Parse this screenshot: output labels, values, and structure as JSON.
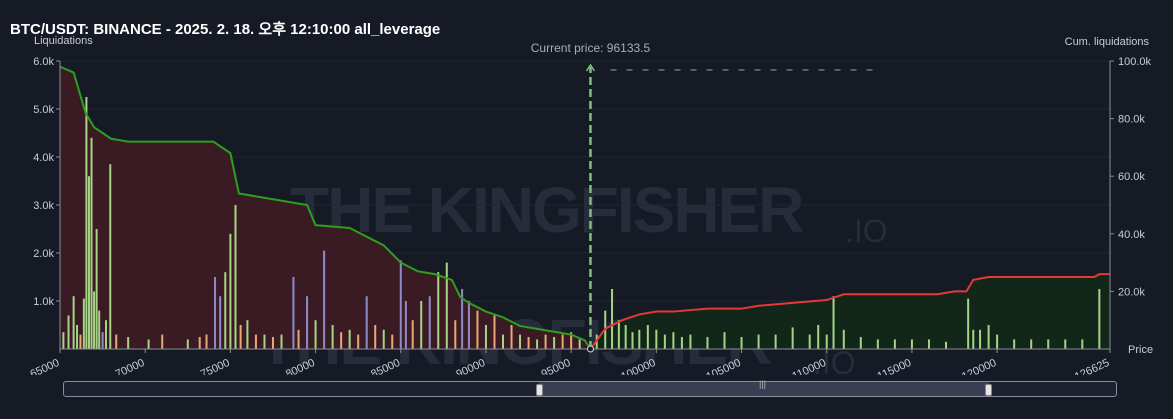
{
  "header": {
    "title": "BTC/USDT: BINANCE - 2025. 2. 18. 오후 12:10:00 all_leverage"
  },
  "axes": {
    "left_label": "Liquidations",
    "right_label": "Cum. liquidations",
    "x_label": "Price"
  },
  "watermark": {
    "text": "THE KINGFISHER",
    "suffix": ".IO"
  },
  "colors": {
    "background": "#161a25",
    "short_cum": "#2e9e1e",
    "long_cum": "#e53935",
    "short_fill": "#3a1b24",
    "long_fill": "#13261a",
    "current_line": "#7fc07a"
  },
  "chart_data": {
    "type": "bar",
    "current_price": 96133.5,
    "current_price_label": "Current price: 96133.5",
    "x_range": [
      65000,
      126625
    ],
    "x_ticks": [
      "65000",
      "70000",
      "75000",
      "80000",
      "85000",
      "90000",
      "95000",
      "100000",
      "105000",
      "110000",
      "115000",
      "120000",
      "126625"
    ],
    "x_tick_values": [
      65000,
      70000,
      75000,
      80000,
      85000,
      90000,
      95000,
      100000,
      105000,
      110000,
      115000,
      120000,
      126625
    ],
    "y_left_range": [
      0,
      6000
    ],
    "y_left_ticks": [
      "6.0k",
      "5.0k",
      "4.0k",
      "3.0k",
      "2.0k",
      "1.0k"
    ],
    "y_left_tick_values": [
      6000,
      5000,
      4000,
      3000,
      2000,
      1000
    ],
    "y_right_range": [
      0,
      100000
    ],
    "y_right_ticks": [
      "100.0k",
      "80.0k",
      "60.0k",
      "40.0k",
      "20.0k"
    ],
    "y_right_tick_values": [
      100000,
      80000,
      60000,
      40000,
      20000
    ],
    "bars": [
      {
        "x": 65200,
        "y": 350,
        "c": "g"
      },
      {
        "x": 65500,
        "y": 700,
        "c": "g"
      },
      {
        "x": 65800,
        "y": 1100,
        "c": "g"
      },
      {
        "x": 66000,
        "y": 500,
        "c": "g"
      },
      {
        "x": 66200,
        "y": 300,
        "c": "o"
      },
      {
        "x": 66400,
        "y": 1050,
        "c": "g"
      },
      {
        "x": 66550,
        "y": 5250,
        "c": "g"
      },
      {
        "x": 66700,
        "y": 3600,
        "c": "g"
      },
      {
        "x": 66850,
        "y": 4400,
        "c": "g"
      },
      {
        "x": 67000,
        "y": 1200,
        "c": "g"
      },
      {
        "x": 67150,
        "y": 2500,
        "c": "g"
      },
      {
        "x": 67300,
        "y": 800,
        "c": "g"
      },
      {
        "x": 67500,
        "y": 350,
        "c": "p"
      },
      {
        "x": 67700,
        "y": 600,
        "c": "g"
      },
      {
        "x": 67950,
        "y": 3850,
        "c": "g"
      },
      {
        "x": 68300,
        "y": 300,
        "c": "o"
      },
      {
        "x": 69000,
        "y": 250,
        "c": "g"
      },
      {
        "x": 70200,
        "y": 200,
        "c": "g"
      },
      {
        "x": 71000,
        "y": 300,
        "c": "o"
      },
      {
        "x": 72500,
        "y": 200,
        "c": "g"
      },
      {
        "x": 73200,
        "y": 250,
        "c": "o"
      },
      {
        "x": 73600,
        "y": 300,
        "c": "o"
      },
      {
        "x": 74100,
        "y": 1500,
        "c": "p"
      },
      {
        "x": 74400,
        "y": 1100,
        "c": "p"
      },
      {
        "x": 74700,
        "y": 1600,
        "c": "g"
      },
      {
        "x": 75000,
        "y": 2400,
        "c": "g"
      },
      {
        "x": 75300,
        "y": 3000,
        "c": "g"
      },
      {
        "x": 75600,
        "y": 500,
        "c": "o"
      },
      {
        "x": 76000,
        "y": 600,
        "c": "g"
      },
      {
        "x": 76500,
        "y": 300,
        "c": "o"
      },
      {
        "x": 77000,
        "y": 300,
        "c": "g"
      },
      {
        "x": 77500,
        "y": 250,
        "c": "o"
      },
      {
        "x": 78000,
        "y": 300,
        "c": "g"
      },
      {
        "x": 78700,
        "y": 1500,
        "c": "p"
      },
      {
        "x": 79000,
        "y": 400,
        "c": "o"
      },
      {
        "x": 79500,
        "y": 1100,
        "c": "p"
      },
      {
        "x": 80000,
        "y": 600,
        "c": "g"
      },
      {
        "x": 80500,
        "y": 2050,
        "c": "p"
      },
      {
        "x": 81000,
        "y": 500,
        "c": "g"
      },
      {
        "x": 81500,
        "y": 350,
        "c": "o"
      },
      {
        "x": 82000,
        "y": 400,
        "c": "g"
      },
      {
        "x": 82500,
        "y": 300,
        "c": "o"
      },
      {
        "x": 83000,
        "y": 1100,
        "c": "p"
      },
      {
        "x": 83500,
        "y": 500,
        "c": "o"
      },
      {
        "x": 84000,
        "y": 400,
        "c": "g"
      },
      {
        "x": 84500,
        "y": 300,
        "c": "o"
      },
      {
        "x": 85000,
        "y": 1850,
        "c": "p"
      },
      {
        "x": 85300,
        "y": 1000,
        "c": "p"
      },
      {
        "x": 85700,
        "y": 600,
        "c": "o"
      },
      {
        "x": 86200,
        "y": 1000,
        "c": "g"
      },
      {
        "x": 86700,
        "y": 1100,
        "c": "p"
      },
      {
        "x": 87200,
        "y": 1600,
        "c": "g"
      },
      {
        "x": 87700,
        "y": 1800,
        "c": "g"
      },
      {
        "x": 88200,
        "y": 600,
        "c": "o"
      },
      {
        "x": 88600,
        "y": 1250,
        "c": "p"
      },
      {
        "x": 89000,
        "y": 1000,
        "c": "p"
      },
      {
        "x": 89500,
        "y": 800,
        "c": "o"
      },
      {
        "x": 90000,
        "y": 500,
        "c": "g"
      },
      {
        "x": 90500,
        "y": 700,
        "c": "o"
      },
      {
        "x": 91000,
        "y": 300,
        "c": "g"
      },
      {
        "x": 91500,
        "y": 500,
        "c": "o"
      },
      {
        "x": 92000,
        "y": 300,
        "c": "g"
      },
      {
        "x": 92500,
        "y": 250,
        "c": "o"
      },
      {
        "x": 93000,
        "y": 200,
        "c": "g"
      },
      {
        "x": 93500,
        "y": 300,
        "c": "o"
      },
      {
        "x": 94000,
        "y": 250,
        "c": "g"
      },
      {
        "x": 94500,
        "y": 300,
        "c": "o"
      },
      {
        "x": 95000,
        "y": 350,
        "c": "o"
      },
      {
        "x": 95500,
        "y": 200,
        "c": "g"
      },
      {
        "x": 96500,
        "y": 300,
        "c": "g"
      },
      {
        "x": 97000,
        "y": 800,
        "c": "g"
      },
      {
        "x": 97400,
        "y": 1250,
        "c": "g"
      },
      {
        "x": 97800,
        "y": 600,
        "c": "g"
      },
      {
        "x": 98200,
        "y": 500,
        "c": "g"
      },
      {
        "x": 98600,
        "y": 350,
        "c": "g"
      },
      {
        "x": 99000,
        "y": 400,
        "c": "g"
      },
      {
        "x": 99500,
        "y": 500,
        "c": "g"
      },
      {
        "x": 100000,
        "y": 400,
        "c": "g"
      },
      {
        "x": 100500,
        "y": 300,
        "c": "g"
      },
      {
        "x": 101000,
        "y": 350,
        "c": "g"
      },
      {
        "x": 101500,
        "y": 250,
        "c": "g"
      },
      {
        "x": 102000,
        "y": 300,
        "c": "g"
      },
      {
        "x": 103000,
        "y": 250,
        "c": "g"
      },
      {
        "x": 104000,
        "y": 350,
        "c": "g"
      },
      {
        "x": 105000,
        "y": 250,
        "c": "g"
      },
      {
        "x": 106000,
        "y": 300,
        "c": "g"
      },
      {
        "x": 107000,
        "y": 300,
        "c": "g"
      },
      {
        "x": 108000,
        "y": 450,
        "c": "g"
      },
      {
        "x": 109000,
        "y": 300,
        "c": "g"
      },
      {
        "x": 109500,
        "y": 500,
        "c": "g"
      },
      {
        "x": 110000,
        "y": 300,
        "c": "g"
      },
      {
        "x": 110400,
        "y": 1100,
        "c": "g"
      },
      {
        "x": 111000,
        "y": 400,
        "c": "g"
      },
      {
        "x": 112000,
        "y": 250,
        "c": "g"
      },
      {
        "x": 113000,
        "y": 200,
        "c": "g"
      },
      {
        "x": 114000,
        "y": 200,
        "c": "g"
      },
      {
        "x": 115000,
        "y": 200,
        "c": "g"
      },
      {
        "x": 116000,
        "y": 200,
        "c": "g"
      },
      {
        "x": 117000,
        "y": 150,
        "c": "g"
      },
      {
        "x": 118300,
        "y": 1050,
        "c": "g"
      },
      {
        "x": 118600,
        "y": 400,
        "c": "g"
      },
      {
        "x": 119000,
        "y": 400,
        "c": "g"
      },
      {
        "x": 119500,
        "y": 500,
        "c": "g"
      },
      {
        "x": 120000,
        "y": 300,
        "c": "g"
      },
      {
        "x": 121000,
        "y": 200,
        "c": "g"
      },
      {
        "x": 122000,
        "y": 200,
        "c": "g"
      },
      {
        "x": 123000,
        "y": 200,
        "c": "g"
      },
      {
        "x": 124000,
        "y": 200,
        "c": "g"
      },
      {
        "x": 125000,
        "y": 200,
        "c": "g"
      },
      {
        "x": 126000,
        "y": 1250,
        "c": "g"
      }
    ],
    "short_cum": [
      [
        65000,
        98000
      ],
      [
        65800,
        96000
      ],
      [
        66500,
        82000
      ],
      [
        67000,
        77000
      ],
      [
        68000,
        73000
      ],
      [
        69000,
        72000
      ],
      [
        74000,
        72000
      ],
      [
        75000,
        68000
      ],
      [
        75500,
        54000
      ],
      [
        76500,
        53000
      ],
      [
        79500,
        50000
      ],
      [
        80000,
        43000
      ],
      [
        82000,
        42000
      ],
      [
        84000,
        36000
      ],
      [
        85000,
        30000
      ],
      [
        86000,
        27000
      ],
      [
        87000,
        26000
      ],
      [
        88000,
        24000
      ],
      [
        88500,
        18000
      ],
      [
        89000,
        16000
      ],
      [
        90000,
        13000
      ],
      [
        91000,
        11000
      ],
      [
        92000,
        8000
      ],
      [
        93000,
        7000
      ],
      [
        94000,
        6000
      ],
      [
        95000,
        5000
      ],
      [
        95800,
        3000
      ],
      [
        96133.5,
        0
      ]
    ],
    "long_cum": [
      [
        96133.5,
        0
      ],
      [
        97000,
        7000
      ],
      [
        98000,
        10000
      ],
      [
        99000,
        12000
      ],
      [
        100000,
        13000
      ],
      [
        101000,
        13000
      ],
      [
        103000,
        14000
      ],
      [
        105000,
        14000
      ],
      [
        106000,
        15000
      ],
      [
        108000,
        16000
      ],
      [
        110000,
        17000
      ],
      [
        111000,
        19000
      ],
      [
        113000,
        19000
      ],
      [
        115000,
        19000
      ],
      [
        116500,
        19000
      ],
      [
        117500,
        20000
      ],
      [
        118200,
        20000
      ],
      [
        118600,
        24000
      ],
      [
        119500,
        25000
      ],
      [
        121000,
        25000
      ],
      [
        125700,
        25000
      ],
      [
        126000,
        26000
      ],
      [
        126625,
        26000
      ]
    ],
    "legend": []
  }
}
